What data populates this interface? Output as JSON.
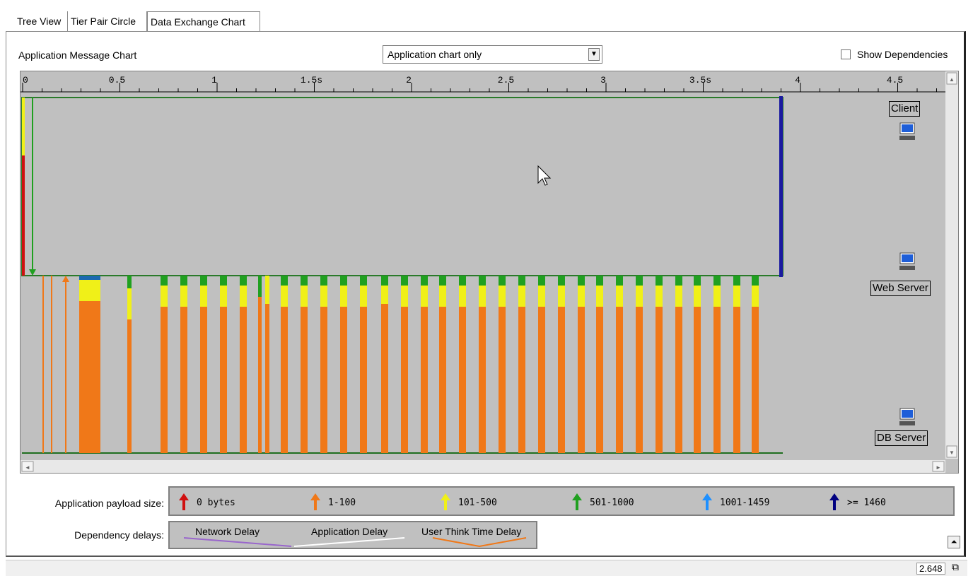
{
  "tabs": [
    "Tree View",
    "Tier Pair Circle",
    "Data Exchange Chart"
  ],
  "chart_title": "Application Message Chart",
  "view_select": "Application chart only",
  "show_dependencies": "Show Dependencies",
  "axis_labels": [
    "0",
    "0.5",
    "1",
    "1.5s",
    "2",
    "2.5",
    "3",
    "3.5s",
    "4",
    "4.5"
  ],
  "nodes": {
    "client": "Client",
    "web": "Web Server",
    "db": "DB Server"
  },
  "legend": {
    "payload_label": "Application payload size:",
    "payload": [
      {
        "label": "0 bytes",
        "color": "#d01010"
      },
      {
        "label": "1-100",
        "color": "#f07818"
      },
      {
        "label": "101-500",
        "color": "#f0f018"
      },
      {
        "label": "501-1000",
        "color": "#20a020"
      },
      {
        "label": "1001-1459",
        "color": "#1e90ff"
      },
      {
        "label": ">= 1460",
        "color": "#000080"
      }
    ],
    "delay_label": "Dependency delays:",
    "delays": [
      {
        "label": "Network Delay",
        "color": "#9966cc"
      },
      {
        "label": "Application Delay",
        "color": "#ffffff"
      },
      {
        "label": "User Think Time Delay",
        "color": "#f07818"
      }
    ]
  },
  "status": {
    "value": "2.648"
  },
  "icons": {
    "dropdown": "chevron-down-icon",
    "computer": "computer-icon",
    "collapse": "collapse-icon"
  }
}
